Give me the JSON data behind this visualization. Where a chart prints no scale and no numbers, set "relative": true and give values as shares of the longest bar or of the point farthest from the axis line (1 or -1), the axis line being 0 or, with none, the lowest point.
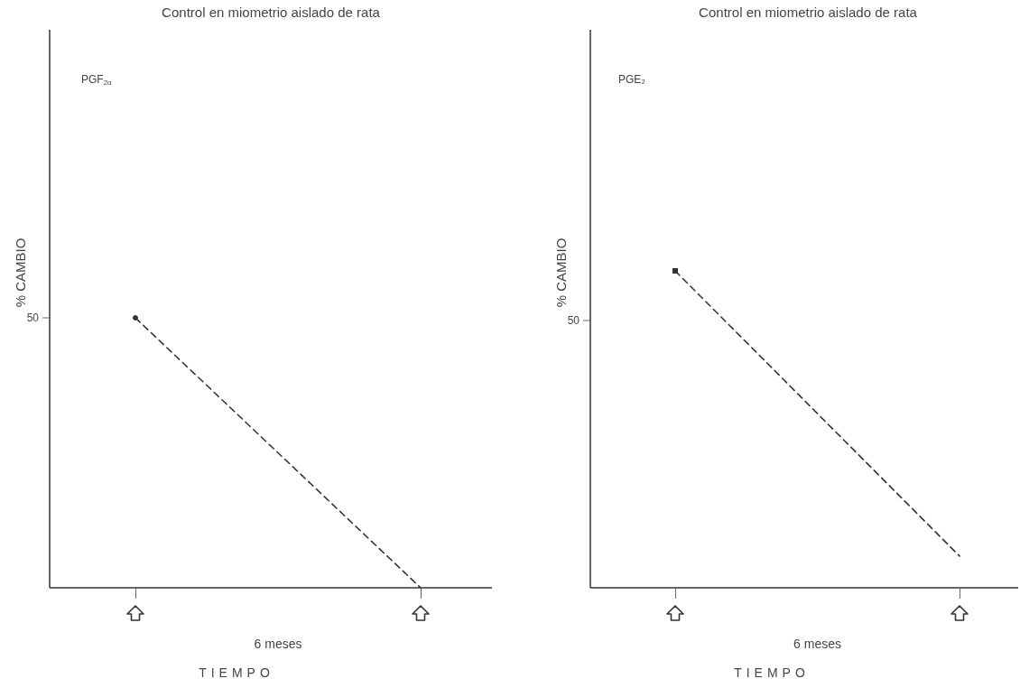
{
  "chart_data": [
    {
      "type": "line",
      "title": "Control en miometrio aislado de rata",
      "xlabel": "6 meses\nTIEMPO",
      "ylabel": "% CAMBIO",
      "relative": true,
      "marker": "circle",
      "line_style": "dashed",
      "categories": [
        null,
        null
      ],
      "series": [
        {
          "color": "#333333",
          "values": [
            1,
            0
          ]
        }
      ],
      "annotations": [
        "PGF$_{2α}$",
        "50"
      ]
    },
    {
      "type": "line",
      "title": "Control en miometrio aislado de rata",
      "xlabel": "6 meses\nTIEMPO",
      "ylabel": "% CAMBIO",
      "relative": true,
      "marker": "square",
      "line_style": "dashed",
      "categories": [
        null,
        null
      ],
      "series": [
        {
          "color": "#333333",
          "values": [
            1,
            0.1
          ]
        }
      ],
      "annotations": [
        "PGE₂",
        "50"
      ]
    }
  ]
}
